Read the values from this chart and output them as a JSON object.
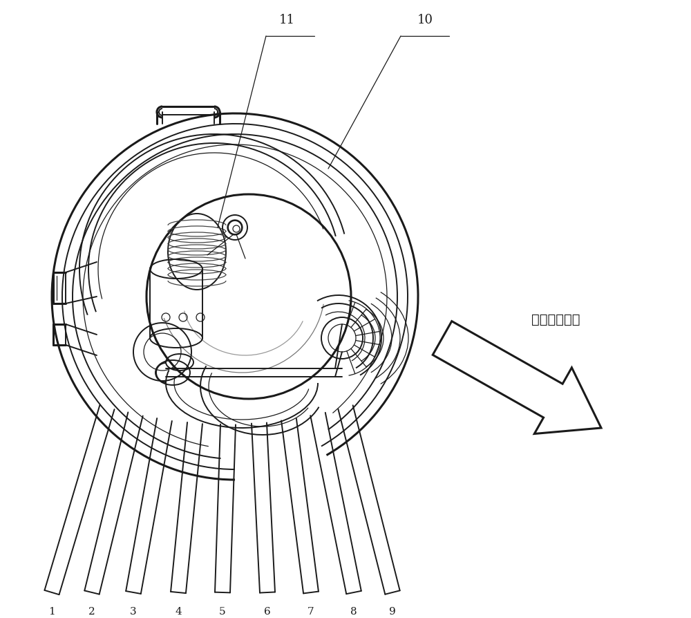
{
  "bg_color": "#ffffff",
  "lc": "#1a1a1a",
  "fig_width": 10.0,
  "fig_height": 8.95,
  "dpi": 100,
  "labels_bottom": [
    "1",
    "2",
    "3",
    "4",
    "5",
    "6",
    "7",
    "8",
    "9"
  ],
  "arrow_label": "混合气流方向",
  "label_11": "11",
  "label_10": "10",
  "lw_thick": 2.2,
  "lw_main": 1.4,
  "lw_thin": 0.9,
  "lw_xtra": 0.6
}
